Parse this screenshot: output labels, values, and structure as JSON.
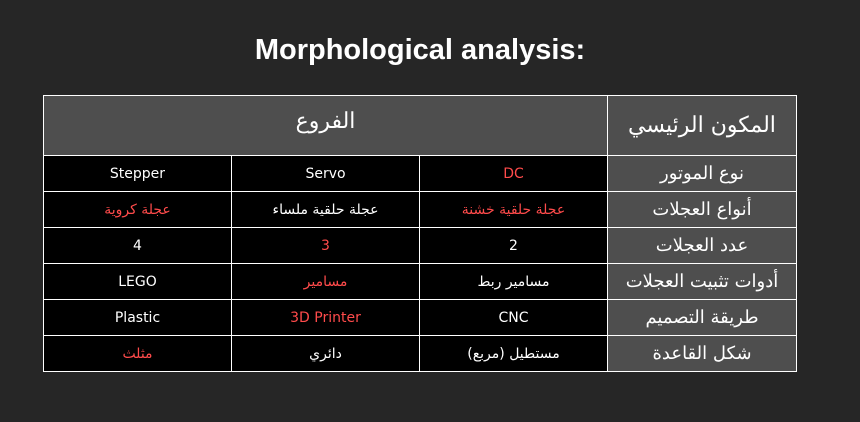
{
  "title": "Morphological analysis:",
  "header": {
    "branches": "الفروع",
    "main_component": "المكون الرئيسي"
  },
  "rows": [
    {
      "label": "نوع الموتور",
      "cells": [
        {
          "text": "Stepper",
          "highlight": false
        },
        {
          "text": "Servo",
          "highlight": false
        },
        {
          "text": "DC",
          "highlight": true
        }
      ]
    },
    {
      "label": "أنواع العجلات",
      "cells": [
        {
          "text": "عجلة كروية",
          "highlight": true
        },
        {
          "text": "عجلة حلقية ملساء",
          "highlight": false
        },
        {
          "text": "عجلة حلقية خشنة",
          "highlight": true
        }
      ]
    },
    {
      "label": "عدد العجلات",
      "cells": [
        {
          "text": "4",
          "highlight": false
        },
        {
          "text": "3",
          "highlight": true
        },
        {
          "text": "2",
          "highlight": false
        }
      ]
    },
    {
      "label": "أدوات تثبيت العجلات",
      "cells": [
        {
          "text": "LEGO",
          "highlight": false
        },
        {
          "text": "مسامير",
          "highlight": true
        },
        {
          "text": "مسامير ربط",
          "highlight": false
        }
      ]
    },
    {
      "label": "طريقة التصميم",
      "cells": [
        {
          "text": "Plastic",
          "highlight": false
        },
        {
          "text": "3D Printer",
          "highlight": true
        },
        {
          "text": "CNC",
          "highlight": false
        }
      ]
    },
    {
      "label": "شكل القاعدة",
      "cells": [
        {
          "text": "مثلث",
          "highlight": true
        },
        {
          "text": "دائري",
          "highlight": false
        },
        {
          "text": "مستطيل (مربع)",
          "highlight": false
        }
      ]
    }
  ],
  "colors": {
    "background": "#262626",
    "header_cell": "#4e4e4e",
    "body_cell": "#000000",
    "highlight_text": "#ff4b4b",
    "text": "#ffffff"
  }
}
